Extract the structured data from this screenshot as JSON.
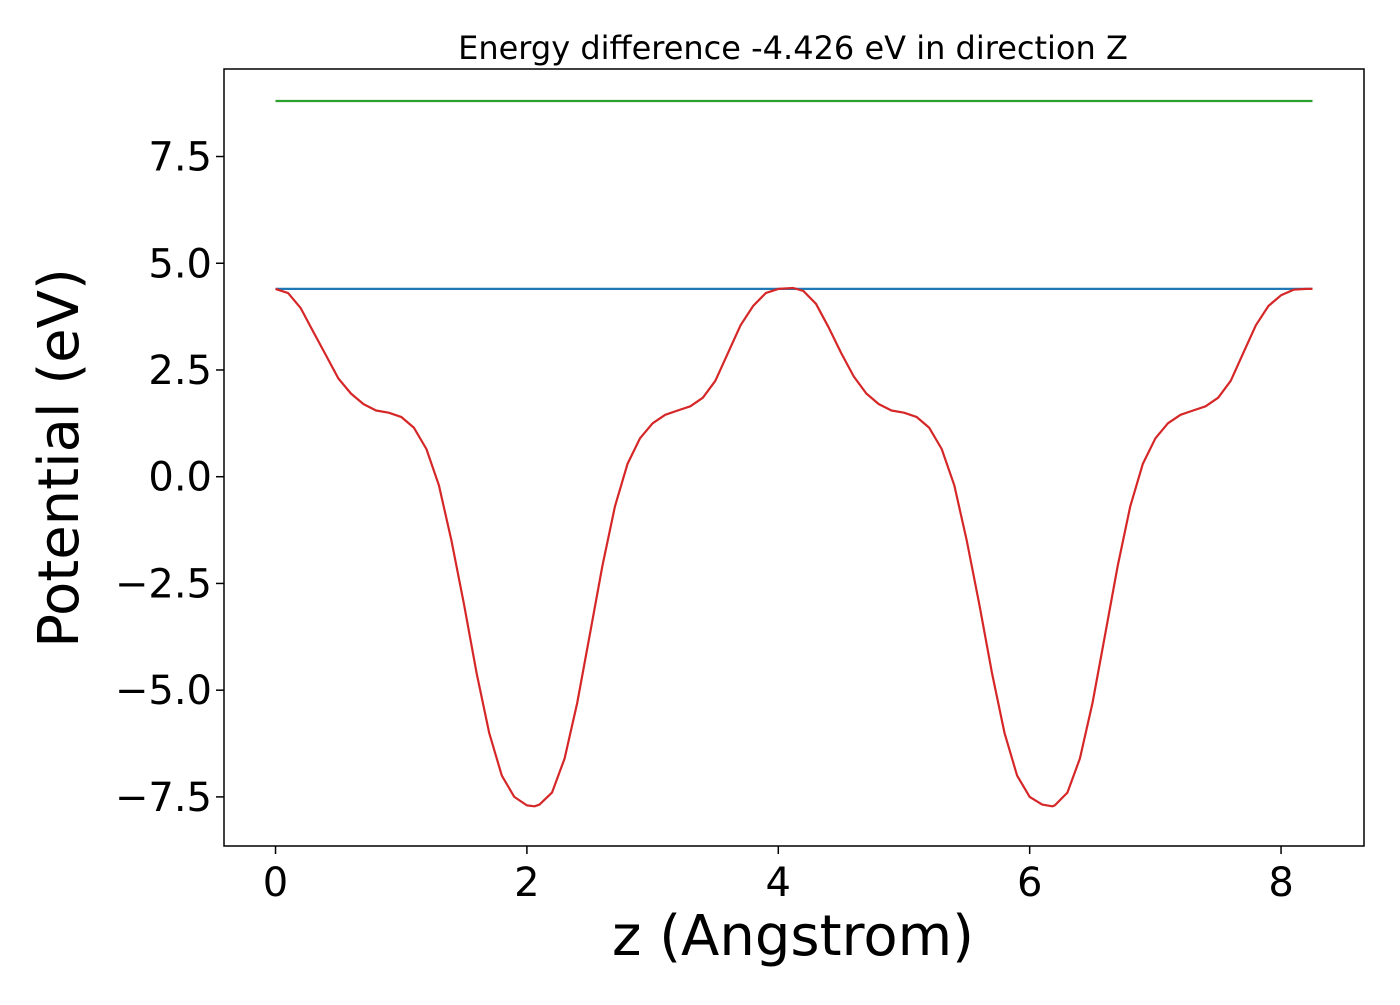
{
  "chart_data": {
    "type": "line",
    "title": "Energy difference -4.426 eV in direction Z",
    "xlabel": "z (Angstrom)",
    "ylabel": "Potential (eV)",
    "xlim": [
      -0.41,
      8.66
    ],
    "ylim": [
      -8.65,
      9.55
    ],
    "xticks": [
      0,
      2,
      4,
      6,
      8
    ],
    "xtick_labels": [
      "0",
      "2",
      "4",
      "6",
      "8"
    ],
    "yticks": [
      -7.5,
      -5.0,
      -2.5,
      0.0,
      2.5,
      5.0,
      7.5
    ],
    "ytick_labels": [
      "−7.5",
      "−5.0",
      "−2.5",
      "0.0",
      "2.5",
      "5.0",
      "7.5"
    ],
    "grid": false,
    "legend": "none",
    "series": [
      {
        "color": "#2ca02c",
        "x": [
          0,
          8.25
        ],
        "y": [
          8.8,
          8.8
        ]
      },
      {
        "color": "#1f77b4",
        "x": [
          0,
          8.25
        ],
        "y": [
          4.4,
          4.4
        ]
      },
      {
        "color": "#d62728",
        "x": [
          0,
          0.1,
          0.2,
          0.3,
          0.4,
          0.5,
          0.6,
          0.7,
          0.8,
          0.9,
          1.0,
          1.1,
          1.2,
          1.3,
          1.4,
          1.5,
          1.6,
          1.7,
          1.8,
          1.9,
          2.0,
          2.06,
          2.1,
          2.2,
          2.3,
          2.4,
          2.5,
          2.6,
          2.7,
          2.8,
          2.9,
          3.0,
          3.1,
          3.2,
          3.3,
          3.4,
          3.5,
          3.6,
          3.7,
          3.8,
          3.9,
          4.0,
          4.12,
          4.2,
          4.3,
          4.4,
          4.5,
          4.6,
          4.7,
          4.8,
          4.9,
          5.0,
          5.1,
          5.2,
          5.3,
          5.4,
          5.5,
          5.6,
          5.7,
          5.8,
          5.9,
          6.0,
          6.1,
          6.18,
          6.2,
          6.3,
          6.4,
          6.5,
          6.6,
          6.7,
          6.8,
          6.9,
          7.0,
          7.1,
          7.2,
          7.3,
          7.4,
          7.5,
          7.6,
          7.7,
          7.8,
          7.9,
          8.0,
          8.1,
          8.2,
          8.25
        ],
        "y": [
          4.4,
          4.3,
          3.95,
          3.4,
          2.85,
          2.3,
          1.95,
          1.7,
          1.55,
          1.5,
          1.4,
          1.15,
          0.65,
          -0.2,
          -1.5,
          -3.0,
          -4.6,
          -6.0,
          -7.0,
          -7.5,
          -7.7,
          -7.72,
          -7.68,
          -7.4,
          -6.6,
          -5.3,
          -3.7,
          -2.1,
          -0.7,
          0.3,
          0.9,
          1.25,
          1.45,
          1.55,
          1.65,
          1.85,
          2.25,
          2.9,
          3.55,
          4.0,
          4.3,
          4.4,
          4.42,
          4.35,
          4.05,
          3.5,
          2.9,
          2.35,
          1.95,
          1.7,
          1.55,
          1.5,
          1.4,
          1.15,
          0.65,
          -0.2,
          -1.5,
          -3.0,
          -4.6,
          -6.0,
          -7.0,
          -7.5,
          -7.68,
          -7.72,
          -7.7,
          -7.4,
          -6.6,
          -5.3,
          -3.7,
          -2.1,
          -0.7,
          0.3,
          0.9,
          1.25,
          1.45,
          1.55,
          1.65,
          1.85,
          2.25,
          2.9,
          3.55,
          4.0,
          4.25,
          4.38,
          4.4,
          4.4
        ]
      }
    ]
  }
}
